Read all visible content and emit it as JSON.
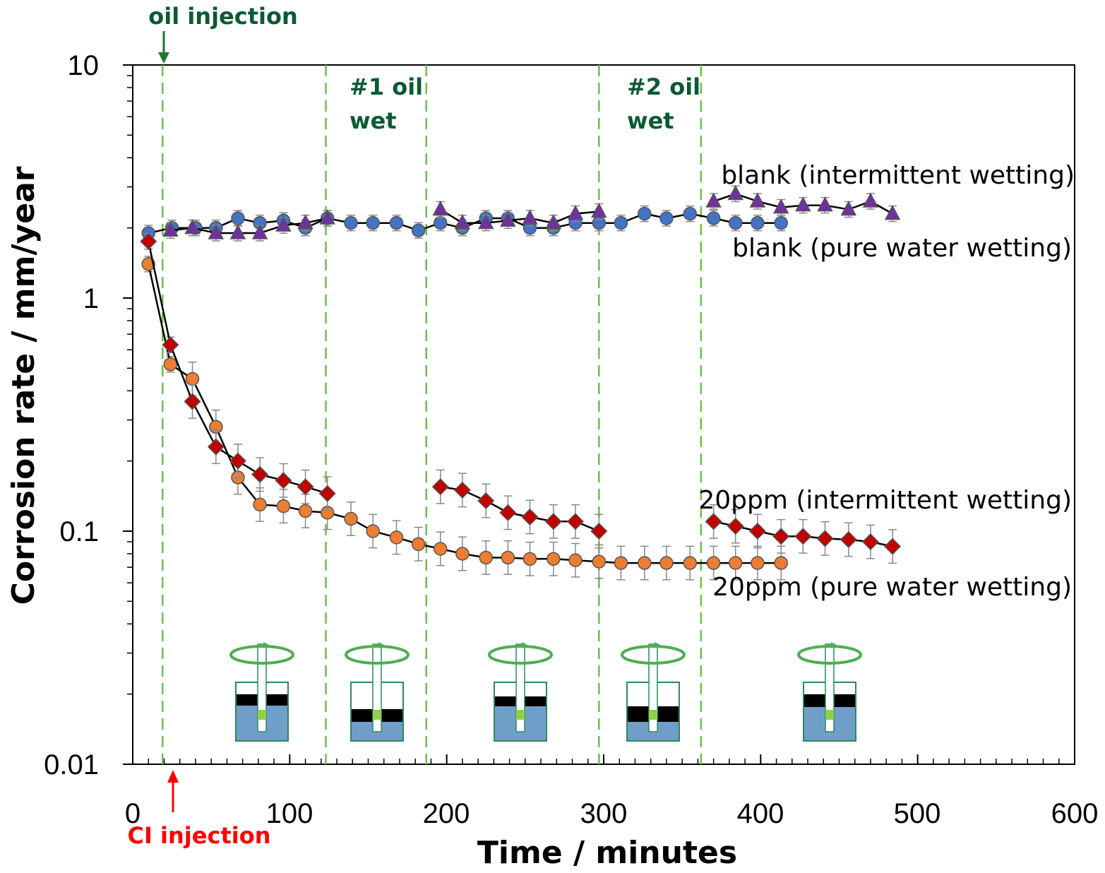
{
  "chart_data": {
    "type": "scatter",
    "xlabel": "Time / minutes",
    "ylabel": "Corrosion rate / mm/year",
    "xlim": [
      0,
      600
    ],
    "ylim": [
      0.01,
      10
    ],
    "yscale": "log",
    "xticks": [
      "0",
      "100",
      "200",
      "300",
      "400",
      "500",
      "600"
    ],
    "yticks": [
      "0.01",
      "0.1",
      "1",
      "10"
    ],
    "grid": false,
    "series": [
      {
        "name": "blank (pure water wetting)",
        "color": "#4472c4",
        "marker": "circle",
        "x": [
          10,
          25,
          40,
          53,
          67,
          81,
          96,
          110,
          124,
          139,
          153,
          168,
          182,
          196,
          210,
          225,
          239,
          253,
          268,
          282,
          297,
          311,
          326,
          340,
          355,
          370,
          384,
          398,
          413
        ],
        "y": [
          1.9,
          2.0,
          2.0,
          2.0,
          2.2,
          2.1,
          2.15,
          2.0,
          2.2,
          2.1,
          2.1,
          2.1,
          1.95,
          2.1,
          2.0,
          2.2,
          2.2,
          2.0,
          2.0,
          2.1,
          2.1,
          2.1,
          2.3,
          2.2,
          2.3,
          2.2,
          2.1,
          2.1,
          2.1
        ]
      },
      {
        "name": "blank (intermittent wetting)",
        "color": "#7030a0",
        "marker": "triangle",
        "x": [
          24,
          38,
          53,
          67,
          81,
          96,
          110,
          124,
          196,
          210,
          225,
          239,
          253,
          268,
          282,
          297,
          370,
          384,
          398,
          413,
          427,
          441,
          456,
          470,
          484
        ],
        "y": [
          1.95,
          2.0,
          1.9,
          1.9,
          1.9,
          2.05,
          2.1,
          2.2,
          2.4,
          2.1,
          2.1,
          2.15,
          2.2,
          2.1,
          2.3,
          2.35,
          2.6,
          2.8,
          2.6,
          2.45,
          2.5,
          2.5,
          2.4,
          2.6,
          2.3
        ]
      },
      {
        "name": "20ppm (intermittent wetting)",
        "color": "#c00000",
        "marker": "diamond",
        "x": [
          10,
          24,
          38,
          53,
          67,
          81,
          96,
          110,
          124,
          196,
          210,
          225,
          239,
          253,
          268,
          282,
          297,
          370,
          384,
          398,
          413,
          427,
          441,
          456,
          470,
          484
        ],
        "y": [
          1.75,
          0.63,
          0.36,
          0.23,
          0.2,
          0.175,
          0.165,
          0.155,
          0.145,
          0.155,
          0.15,
          0.135,
          0.12,
          0.115,
          0.11,
          0.11,
          0.1,
          0.11,
          0.105,
          0.1,
          0.095,
          0.095,
          0.093,
          0.092,
          0.09,
          0.086
        ]
      },
      {
        "name": "20ppm (pure water wetting)",
        "color": "#ed7d31",
        "marker": "circle",
        "x": [
          10,
          24,
          38,
          53,
          67,
          81,
          96,
          110,
          124,
          139,
          153,
          168,
          182,
          196,
          210,
          225,
          239,
          253,
          268,
          282,
          297,
          311,
          326,
          340,
          355,
          370,
          384,
          398,
          413
        ],
        "y": [
          1.4,
          0.52,
          0.45,
          0.28,
          0.17,
          0.13,
          0.128,
          0.122,
          0.12,
          0.113,
          0.1,
          0.094,
          0.088,
          0.084,
          0.08,
          0.077,
          0.077,
          0.076,
          0.076,
          0.075,
          0.074,
          0.073,
          0.073,
          0.073,
          0.073,
          0.073,
          0.073,
          0.073,
          0.073
        ]
      }
    ],
    "annotations": {
      "oil_injection": "oil injection",
      "ci_injection": "CI injection",
      "oil_wet_1_line1": "#1 oil",
      "oil_wet_1_line2": "wet",
      "oil_wet_2_line1": "#2 oil",
      "oil_wet_2_line2": "wet"
    },
    "vertical_markers_x": [
      19,
      123,
      187,
      297,
      362
    ],
    "series_labels": {
      "blank_intermittent": "blank (intermittent wetting)",
      "blank_pure": "blank (pure water wetting)",
      "ppm_intermittent": "20ppm (intermittent wetting)",
      "ppm_pure": "20ppm (pure water wetting)"
    }
  }
}
